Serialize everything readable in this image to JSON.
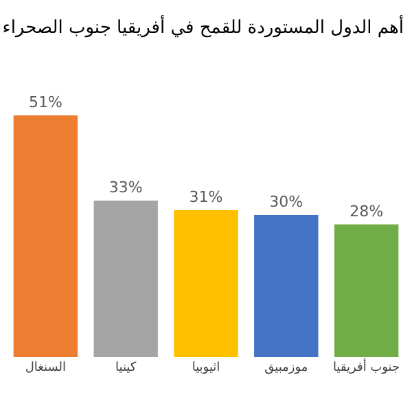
{
  "chart_data": {
    "type": "bar",
    "title": "أهم الدول المستوردة للقمح في أفريقيا جنوب الصحراء",
    "categories": [
      "السنغال",
      "كينيا",
      "اثيوبيا",
      "موزمبيق",
      "جنوب أفريقيا"
    ],
    "values": [
      51,
      33,
      31,
      30,
      28
    ],
    "value_labels": [
      "51%",
      "33%",
      "31%",
      "30%",
      "28%"
    ],
    "colors": [
      "#ed7d31",
      "#a5a5a5",
      "#ffc000",
      "#4472c4",
      "#70ad47"
    ]
  }
}
